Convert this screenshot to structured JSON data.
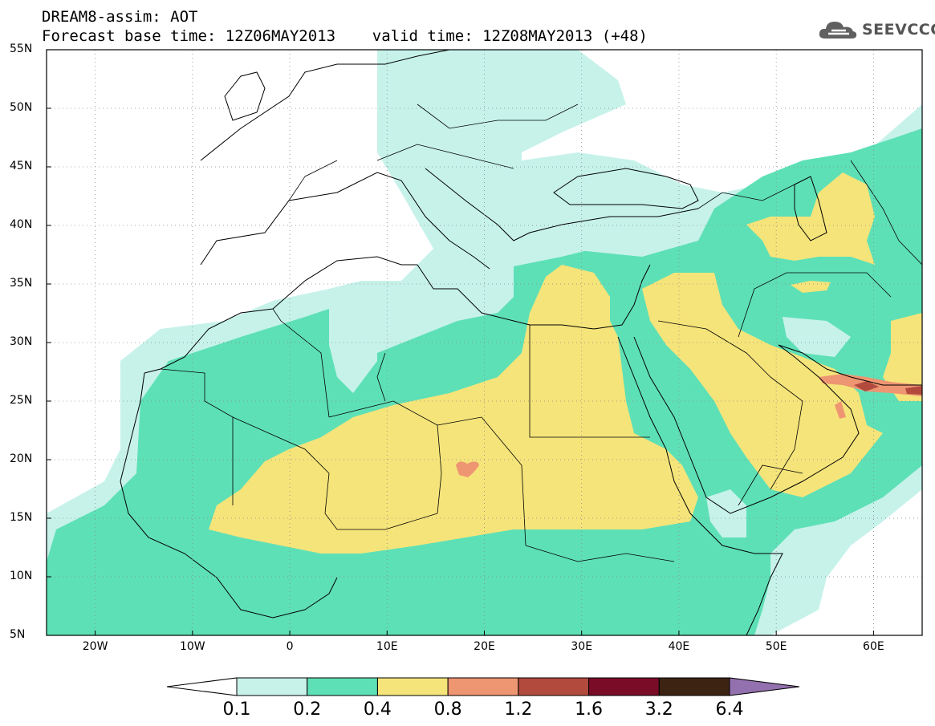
{
  "header": {
    "line1": "DREAM8-assim: AOT",
    "line2": "Forecast base time: 12Z06MAY2013    valid time: 12Z08MAY2013 (+48)",
    "logo_text": "SEEVCCC"
  },
  "map": {
    "lon_range": [
      -25,
      65
    ],
    "lat_range": [
      5,
      55
    ],
    "grid": true,
    "lat_labels": [
      "55N",
      "50N",
      "45N",
      "40N",
      "35N",
      "30N",
      "25N",
      "20N",
      "15N",
      "10N",
      "5N"
    ],
    "lat_values": [
      55,
      50,
      45,
      40,
      35,
      30,
      25,
      20,
      15,
      10,
      5
    ],
    "lon_labels": [
      "20W",
      "10W",
      "0",
      "10E",
      "20E",
      "30E",
      "40E",
      "50E",
      "60E"
    ],
    "lon_values": [
      -20,
      -10,
      0,
      10,
      20,
      30,
      40,
      50,
      60
    ]
  },
  "colorbar": {
    "levels": [
      "0.1",
      "0.2",
      "0.4",
      "0.8",
      "1.2",
      "1.6",
      "3.2",
      "6.4"
    ],
    "colors": [
      "#c6f2ea",
      "#5ee0b6",
      "#f5e47a",
      "#ee9572",
      "#b34a3e",
      "#7a0c27",
      "#3d2412",
      "#9370ae"
    ]
  }
}
